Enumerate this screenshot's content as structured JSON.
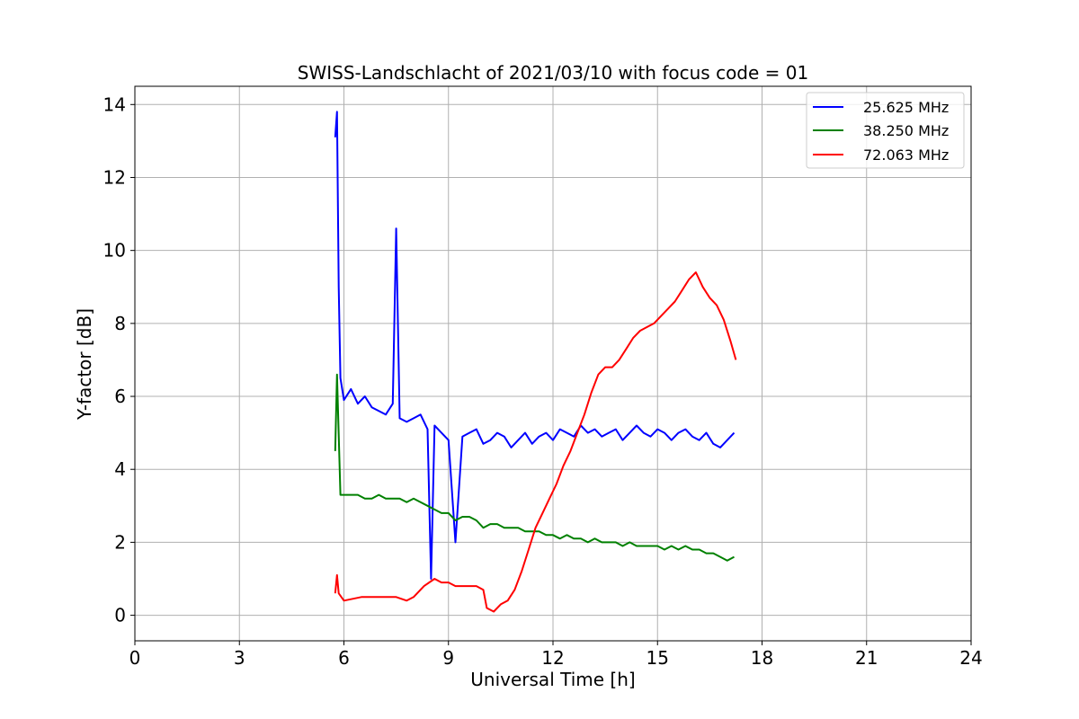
{
  "chart_data": {
    "type": "line",
    "title": "SWISS-Landschlacht of 2021/03/10 with focus code = 01",
    "xlabel": "Universal Time [h]",
    "ylabel": "Y-factor [dB]",
    "xlim": [
      0,
      24
    ],
    "ylim": [
      -0.7,
      14.5
    ],
    "xticks": [
      "0",
      "3",
      "6",
      "9",
      "12",
      "15",
      "18",
      "21",
      "24"
    ],
    "yticks": [
      "0",
      "2",
      "4",
      "6",
      "8",
      "10",
      "12",
      "14"
    ],
    "grid": true,
    "legend_position": "top-right",
    "series": [
      {
        "name": "25.625 MHz",
        "color": "#0000ff",
        "x": [
          5.75,
          5.8,
          5.85,
          5.9,
          6.0,
          6.2,
          6.4,
          6.6,
          6.8,
          7.0,
          7.2,
          7.4,
          7.5,
          7.6,
          7.8,
          8.0,
          8.2,
          8.4,
          8.5,
          8.6,
          8.8,
          9.0,
          9.2,
          9.4,
          9.6,
          9.8,
          10.0,
          10.2,
          10.4,
          10.6,
          10.8,
          11.0,
          11.2,
          11.4,
          11.6,
          11.8,
          12.0,
          12.2,
          12.4,
          12.6,
          12.8,
          13.0,
          13.2,
          13.4,
          13.6,
          13.8,
          14.0,
          14.2,
          14.4,
          14.6,
          14.8,
          15.0,
          15.2,
          15.4,
          15.6,
          15.8,
          16.0,
          16.2,
          16.4,
          16.6,
          16.8,
          17.0,
          17.2
        ],
        "y": [
          13.1,
          13.8,
          9.0,
          6.5,
          5.9,
          6.2,
          5.8,
          6.0,
          5.7,
          5.6,
          5.5,
          5.8,
          10.6,
          5.4,
          5.3,
          5.4,
          5.5,
          5.1,
          1.0,
          5.2,
          5.0,
          4.8,
          2.0,
          4.9,
          5.0,
          5.1,
          4.7,
          4.8,
          5.0,
          4.9,
          4.6,
          4.8,
          5.0,
          4.7,
          4.9,
          5.0,
          4.8,
          5.1,
          5.0,
          4.9,
          5.2,
          5.0,
          5.1,
          4.9,
          5.0,
          5.1,
          4.8,
          5.0,
          5.2,
          5.0,
          4.9,
          5.1,
          5.0,
          4.8,
          5.0,
          5.1,
          4.9,
          4.8,
          5.0,
          4.7,
          4.6,
          4.8,
          5.0
        ]
      },
      {
        "name": "38.250 MHz",
        "color": "#008000",
        "x": [
          5.75,
          5.8,
          5.9,
          6.0,
          6.2,
          6.4,
          6.6,
          6.8,
          7.0,
          7.2,
          7.4,
          7.6,
          7.8,
          8.0,
          8.2,
          8.4,
          8.6,
          8.8,
          9.0,
          9.2,
          9.4,
          9.6,
          9.8,
          10.0,
          10.2,
          10.4,
          10.6,
          10.8,
          11.0,
          11.2,
          11.4,
          11.6,
          11.8,
          12.0,
          12.2,
          12.4,
          12.6,
          12.8,
          13.0,
          13.2,
          13.4,
          13.6,
          13.8,
          14.0,
          14.2,
          14.4,
          14.6,
          14.8,
          15.0,
          15.2,
          15.4,
          15.6,
          15.8,
          16.0,
          16.2,
          16.4,
          16.6,
          16.8,
          17.0,
          17.2
        ],
        "y": [
          4.5,
          6.6,
          3.3,
          3.3,
          3.3,
          3.3,
          3.2,
          3.2,
          3.3,
          3.2,
          3.2,
          3.2,
          3.1,
          3.2,
          3.1,
          3.0,
          2.9,
          2.8,
          2.8,
          2.6,
          2.7,
          2.7,
          2.6,
          2.4,
          2.5,
          2.5,
          2.4,
          2.4,
          2.4,
          2.3,
          2.3,
          2.3,
          2.2,
          2.2,
          2.1,
          2.2,
          2.1,
          2.1,
          2.0,
          2.1,
          2.0,
          2.0,
          2.0,
          1.9,
          2.0,
          1.9,
          1.9,
          1.9,
          1.9,
          1.8,
          1.9,
          1.8,
          1.9,
          1.8,
          1.8,
          1.7,
          1.7,
          1.6,
          1.5,
          1.6
        ]
      },
      {
        "name": "72.063 MHz",
        "color": "#ff0000",
        "x": [
          5.75,
          5.8,
          5.85,
          6.0,
          6.5,
          7.0,
          7.5,
          7.8,
          8.0,
          8.3,
          8.6,
          8.8,
          9.0,
          9.2,
          9.5,
          9.8,
          10.0,
          10.1,
          10.3,
          10.5,
          10.7,
          10.9,
          11.1,
          11.3,
          11.5,
          11.7,
          11.9,
          12.1,
          12.3,
          12.5,
          12.7,
          12.9,
          13.1,
          13.3,
          13.5,
          13.7,
          13.9,
          14.1,
          14.3,
          14.5,
          14.7,
          14.9,
          15.1,
          15.3,
          15.5,
          15.7,
          15.9,
          16.1,
          16.3,
          16.5,
          16.7,
          16.9,
          17.1,
          17.25
        ],
        "y": [
          0.6,
          1.1,
          0.6,
          0.4,
          0.5,
          0.5,
          0.5,
          0.4,
          0.5,
          0.8,
          1.0,
          0.9,
          0.9,
          0.8,
          0.8,
          0.8,
          0.7,
          0.2,
          0.1,
          0.3,
          0.4,
          0.7,
          1.2,
          1.8,
          2.4,
          2.8,
          3.2,
          3.6,
          4.1,
          4.5,
          5.0,
          5.5,
          6.1,
          6.6,
          6.8,
          6.8,
          7.0,
          7.3,
          7.6,
          7.8,
          7.9,
          8.0,
          8.2,
          8.4,
          8.6,
          8.9,
          9.2,
          9.4,
          9.0,
          8.7,
          8.5,
          8.1,
          7.5,
          7.0
        ]
      }
    ]
  }
}
